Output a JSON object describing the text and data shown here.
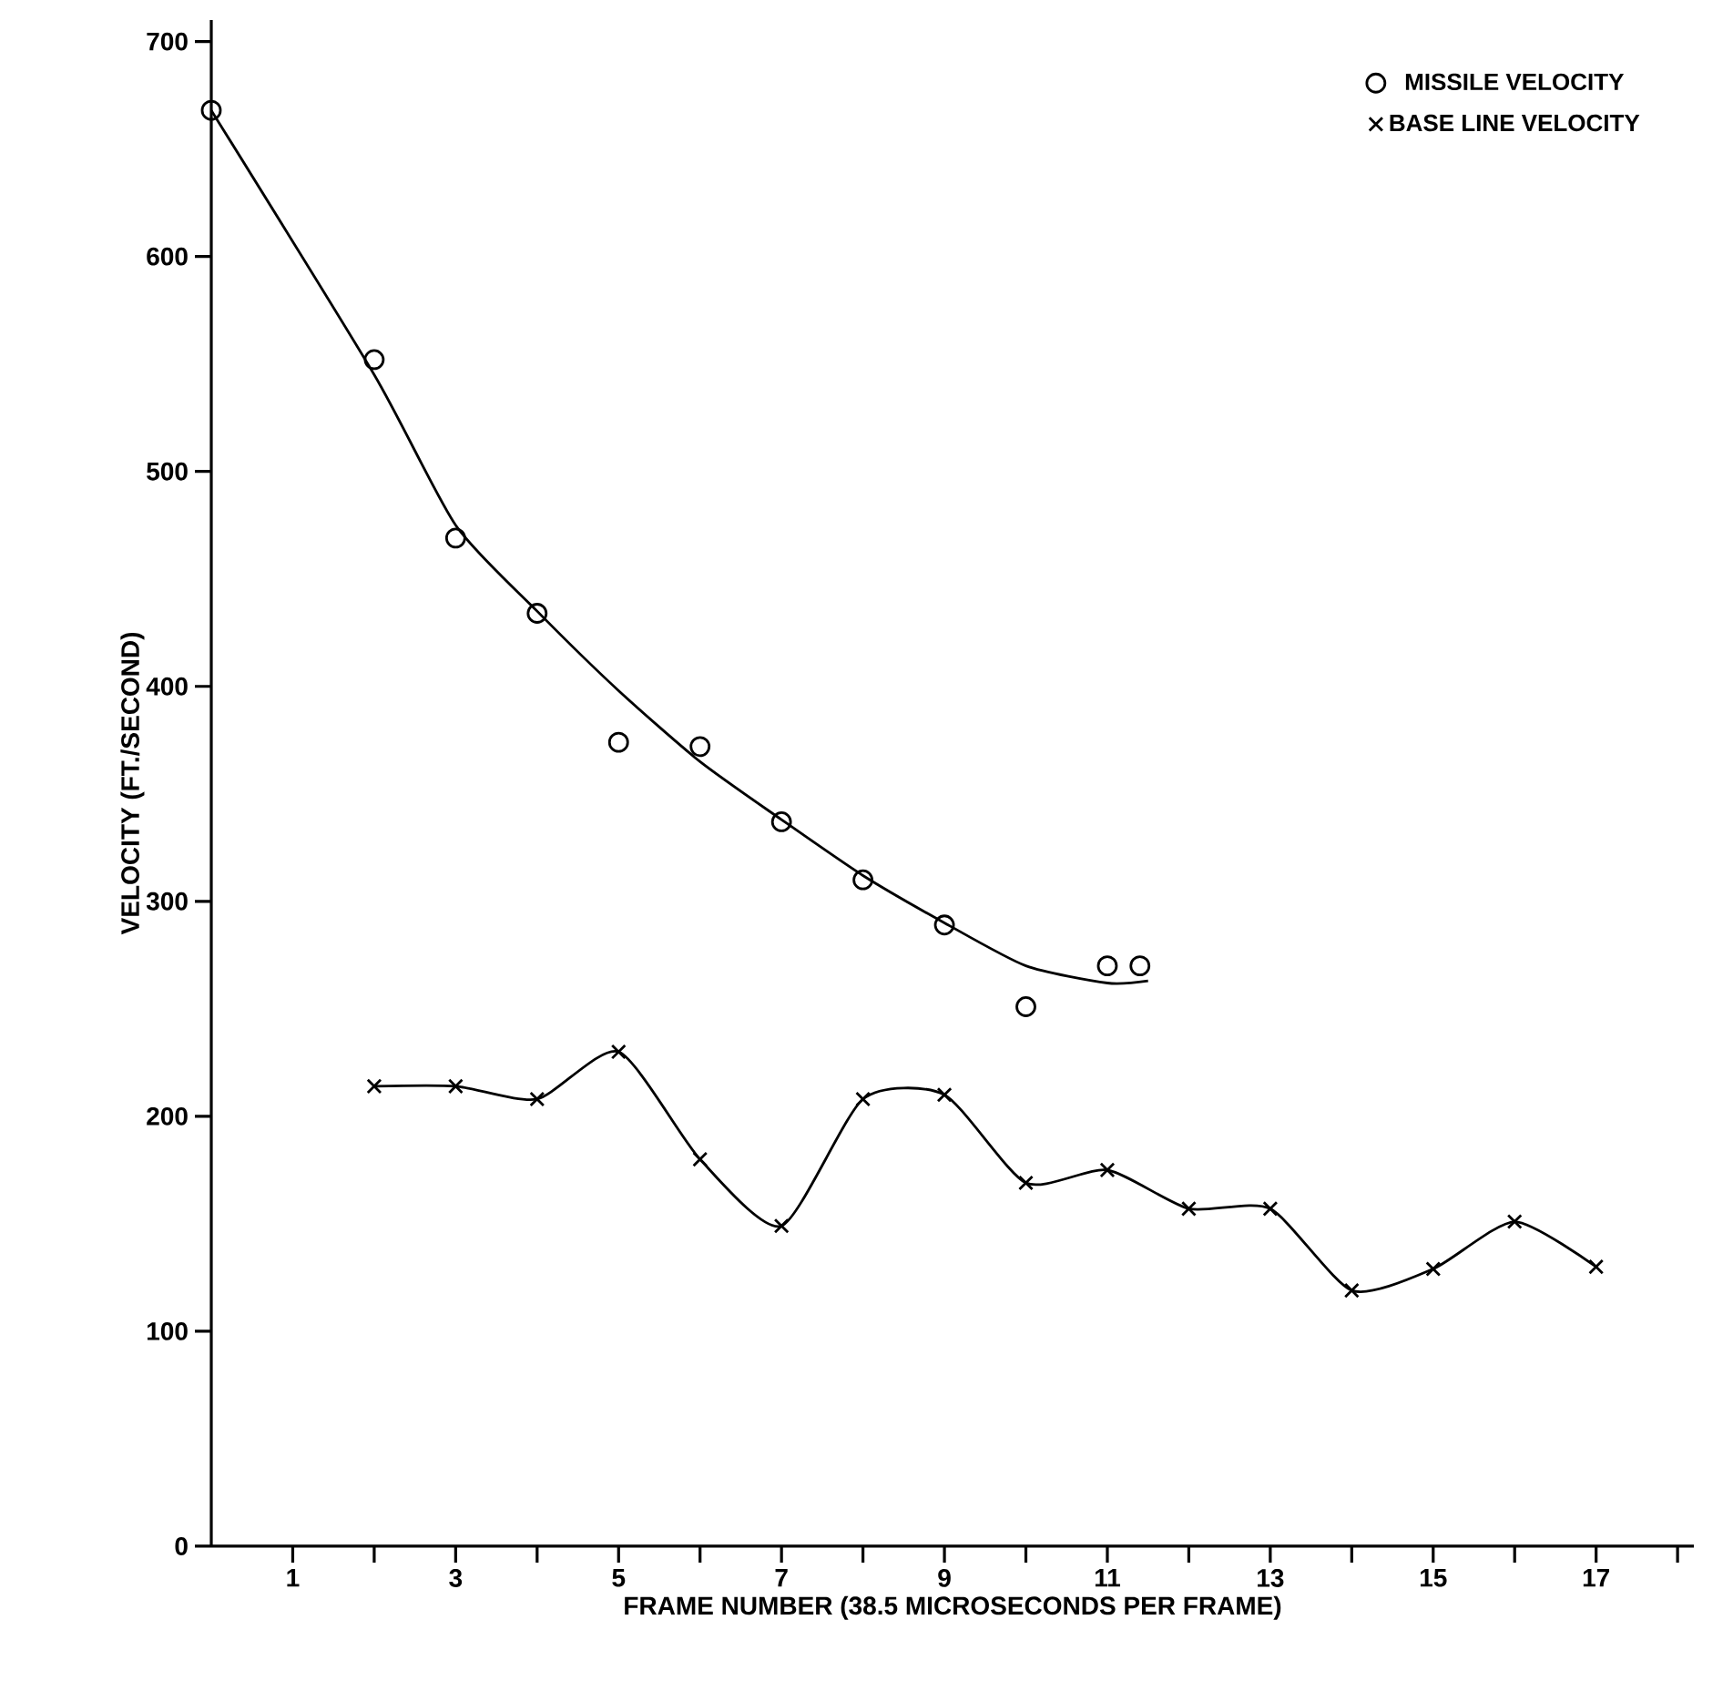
{
  "chart_data": {
    "type": "scatter",
    "xlabel": "FRAME NUMBER (38.5 MICROSECONDS PER FRAME)",
    "ylabel": "VELOCITY (FT./SECOND)",
    "xlim": [
      0,
      18.2
    ],
    "ylim": [
      0,
      710
    ],
    "xticks": [
      1,
      {
        "value": 2,
        "label": null
      },
      3,
      {
        "value": 4,
        "label": null
      },
      5,
      {
        "value": 6,
        "label": null
      },
      7,
      {
        "value": 8,
        "label": null
      },
      9,
      {
        "value": 10,
        "label": null
      },
      11,
      {
        "value": 12,
        "label": null
      },
      13,
      {
        "value": 14,
        "label": null
      },
      15,
      {
        "value": 16,
        "label": null
      },
      17,
      {
        "value": 18,
        "label": null
      }
    ],
    "yticks": [
      0,
      100,
      200,
      300,
      400,
      500,
      600,
      700
    ],
    "legend": "top right",
    "series": [
      {
        "name": "MISSILE VELOCITY",
        "marker": "circle",
        "color": "#000000",
        "x": [
          0,
          2,
          3,
          4,
          5,
          6,
          7,
          8,
          9,
          10,
          11,
          11.4
        ],
        "values": [
          668,
          552,
          469,
          434,
          374,
          372,
          337,
          310,
          289,
          251,
          270,
          270
        ]
      },
      {
        "type": "line",
        "marker": "none",
        "color": "#000000",
        "x": [
          0,
          2,
          3,
          4,
          5,
          6,
          7,
          8,
          9,
          10,
          11,
          11.5
        ],
        "values": [
          668,
          545,
          475,
          435,
          398,
          365,
          338,
          312,
          290,
          270,
          262,
          263
        ]
      },
      {
        "name": "BASE LINE VELOCITY",
        "type": "line",
        "marker": "cross",
        "color": "#000000",
        "x": [
          2,
          3,
          4,
          5,
          6,
          7,
          8,
          9,
          10,
          11,
          12,
          13,
          14,
          15,
          16,
          17
        ],
        "values": [
          214,
          214,
          208,
          230,
          180,
          149,
          208,
          210,
          169,
          175,
          157,
          157,
          119,
          129,
          151,
          130
        ]
      }
    ]
  }
}
